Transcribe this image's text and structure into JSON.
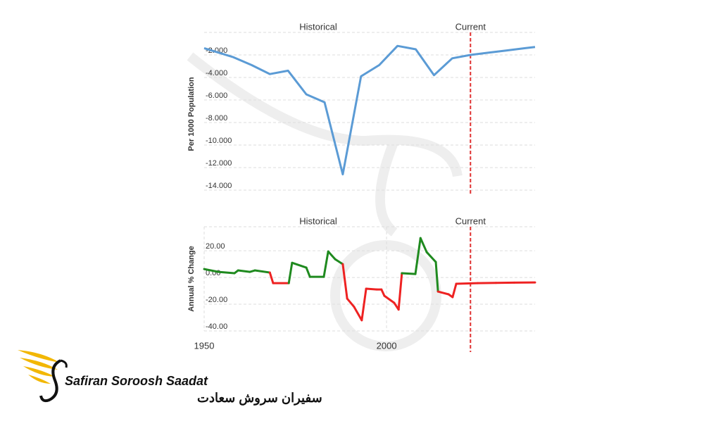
{
  "chart_data": [
    {
      "type": "line",
      "ylabel": "Per 1000 Population",
      "color": "#5b9bd5",
      "x": [
        1950,
        1958,
        1963,
        1968,
        1973,
        1978,
        1983,
        1988,
        1993,
        1998,
        2003,
        2008,
        2013,
        2018,
        2023,
        2028,
        2033,
        2038,
        2040.7
      ],
      "values": [
        -1.4,
        -2.2,
        -2.9,
        -3.7,
        -3.4,
        -5.5,
        -6.2,
        -12.6,
        -3.9,
        -2.9,
        -1.2,
        -1.5,
        -3.8,
        -2.3,
        -2.0,
        -1.8,
        -1.6,
        -1.4,
        -1.3
      ],
      "xlim": [
        1950,
        2040.7
      ],
      "ylim": [
        -14.5,
        0
      ],
      "yticks": [
        {
          "value": -2,
          "label": "-2.000"
        },
        {
          "value": -4,
          "label": "-4.000"
        },
        {
          "value": -6,
          "label": "-6.000"
        },
        {
          "value": -8,
          "label": "-8.000"
        },
        {
          "value": -10,
          "label": "-10.000"
        },
        {
          "value": -12,
          "label": "-12.000"
        },
        {
          "value": -14,
          "label": "-14.000"
        }
      ],
      "grid": true,
      "annotations": [
        "Historical",
        "Current"
      ],
      "current_x": 2023,
      "current_color": "#e03030"
    },
    {
      "type": "signed-line",
      "ylabel": "Annual % Change",
      "color": "#1f8a1f",
      "negative_color": "#ee2222",
      "x": [
        1950,
        1953.9,
        1958.3,
        1959.3,
        1962.5,
        1963.9,
        1968,
        1968.9,
        1973.2,
        1974.1,
        1978,
        1979,
        1982.8,
        1984,
        1985.9,
        1988,
        1989.2,
        1991.1,
        1993.2,
        1994.4,
        1997.3,
        1998.6,
        1999.4,
        2002.1,
        2003.3,
        2004.2,
        2007.9,
        2009.3,
        2011,
        2013.5,
        2014.1,
        2017,
        2018.1,
        2019.1,
        2025,
        2030,
        2035,
        2040.7
      ],
      "values": [
        6.3,
        4.2,
        3.2,
        5.3,
        4.2,
        5.3,
        3.7,
        -4.2,
        -4.2,
        11,
        7.4,
        0.5,
        0.5,
        19.5,
        13.7,
        10,
        -15.8,
        -22,
        -32,
        -8.4,
        -9,
        -9,
        -13.7,
        -19,
        -24,
        3.2,
        2.6,
        29.5,
        19,
        11.6,
        -10.5,
        -12.6,
        -14.7,
        -4.7,
        -4.2,
        -4,
        -3.8,
        -3.7
      ],
      "xlim": [
        1950,
        2040.7
      ],
      "ylim": [
        -40,
        38
      ],
      "yticks": [
        {
          "value": 20,
          "label": "20.00"
        },
        {
          "value": 0,
          "label": "0.00"
        },
        {
          "value": -20,
          "label": "-20.00"
        },
        {
          "value": -40,
          "label": "-40.00"
        }
      ],
      "xticks": [
        1950,
        2000
      ],
      "grid": true,
      "annotations": [
        "Historical",
        "Current"
      ],
      "current_x": 2023,
      "current_color": "#e03030"
    }
  ],
  "logo": {
    "name": "Safiran Soroosh Saadat",
    "name_fa": "سفیران سروش سعادت"
  }
}
